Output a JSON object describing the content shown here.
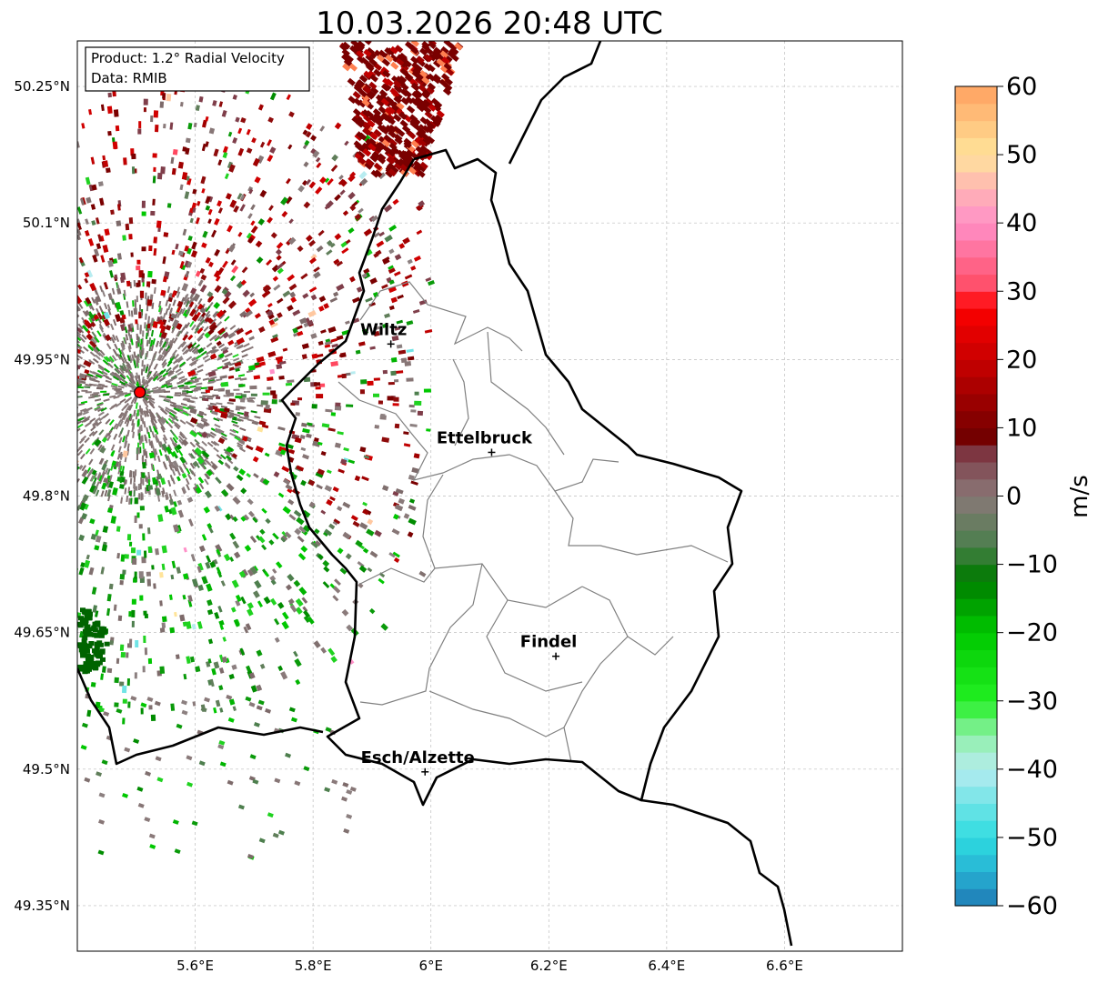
{
  "title": "10.03.2026 20:48 UTC",
  "info_box": {
    "product_line": "Product: 1.2° Radial Velocity",
    "data_line": "Data: RMIB"
  },
  "map": {
    "lon_range": [
      5.4,
      6.8
    ],
    "lat_range": [
      49.3,
      50.3
    ],
    "lon_ticks": [
      {
        "value": 5.6,
        "label": "5.6°E"
      },
      {
        "value": 5.8,
        "label": "5.8°E"
      },
      {
        "value": 6.0,
        "label": "6°E"
      },
      {
        "value": 6.2,
        "label": "6.2°E"
      },
      {
        "value": 6.4,
        "label": "6.4°E"
      },
      {
        "value": 6.6,
        "label": "6.6°E"
      }
    ],
    "lat_ticks": [
      {
        "value": 50.25,
        "label": "50.25°N"
      },
      {
        "value": 50.1,
        "label": "50.1°N"
      },
      {
        "value": 49.95,
        "label": "49.95°N"
      },
      {
        "value": 49.8,
        "label": "49.8°N"
      },
      {
        "value": 49.65,
        "label": "49.65°N"
      },
      {
        "value": 49.5,
        "label": "49.5°N"
      },
      {
        "value": 49.35,
        "label": "49.35°N"
      }
    ],
    "radar_site": {
      "lon": 5.506,
      "lat": 49.914
    },
    "cities": [
      {
        "name": "Wiltz",
        "lon": 5.932,
        "lat": 49.967
      },
      {
        "name": "Ettelbruck",
        "lon": 6.103,
        "lat": 49.848
      },
      {
        "name": "Findel",
        "lon": 6.212,
        "lat": 49.624
      },
      {
        "name": "Esch/Alzette",
        "lon": 5.99,
        "lat": 49.497
      }
    ]
  },
  "colorbar": {
    "label": "m/s",
    "min": -60,
    "max": 60,
    "ticks": [
      {
        "value": 60,
        "label": "60"
      },
      {
        "value": 50,
        "label": "50"
      },
      {
        "value": 40,
        "label": "40"
      },
      {
        "value": 30,
        "label": "30"
      },
      {
        "value": 20,
        "label": "20"
      },
      {
        "value": 10,
        "label": "10"
      },
      {
        "value": 0,
        "label": "0"
      },
      {
        "value": -10,
        "label": "−10"
      },
      {
        "value": -20,
        "label": "−20"
      },
      {
        "value": -30,
        "label": "−30"
      },
      {
        "value": -40,
        "label": "−40"
      },
      {
        "value": -50,
        "label": "−50"
      },
      {
        "value": -60,
        "label": "−60"
      }
    ],
    "color_stops": [
      {
        "value": -60,
        "color": "#1f78b4"
      },
      {
        "value": -55,
        "color": "#27b3d4"
      },
      {
        "value": -50,
        "color": "#2edce0"
      },
      {
        "value": -45,
        "color": "#70e4e6"
      },
      {
        "value": -40,
        "color": "#b7ecf0"
      },
      {
        "value": -35,
        "color": "#8ff0a8"
      },
      {
        "value": -30,
        "color": "#22f022"
      },
      {
        "value": -20,
        "color": "#00c800"
      },
      {
        "value": -12,
        "color": "#007a00"
      },
      {
        "value": -7,
        "color": "#4e7f4e"
      },
      {
        "value": 0,
        "color": "#8a7878"
      },
      {
        "value": 6,
        "color": "#7f3e4a"
      },
      {
        "value": 8,
        "color": "#6e0000"
      },
      {
        "value": 20,
        "color": "#c80000"
      },
      {
        "value": 28,
        "color": "#ff0000"
      },
      {
        "value": 30,
        "color": "#ff4860"
      },
      {
        "value": 40,
        "color": "#ff90c8"
      },
      {
        "value": 45,
        "color": "#ffb4b4"
      },
      {
        "value": 50,
        "color": "#ffe49a"
      },
      {
        "value": 60,
        "color": "#ffa060"
      }
    ]
  }
}
